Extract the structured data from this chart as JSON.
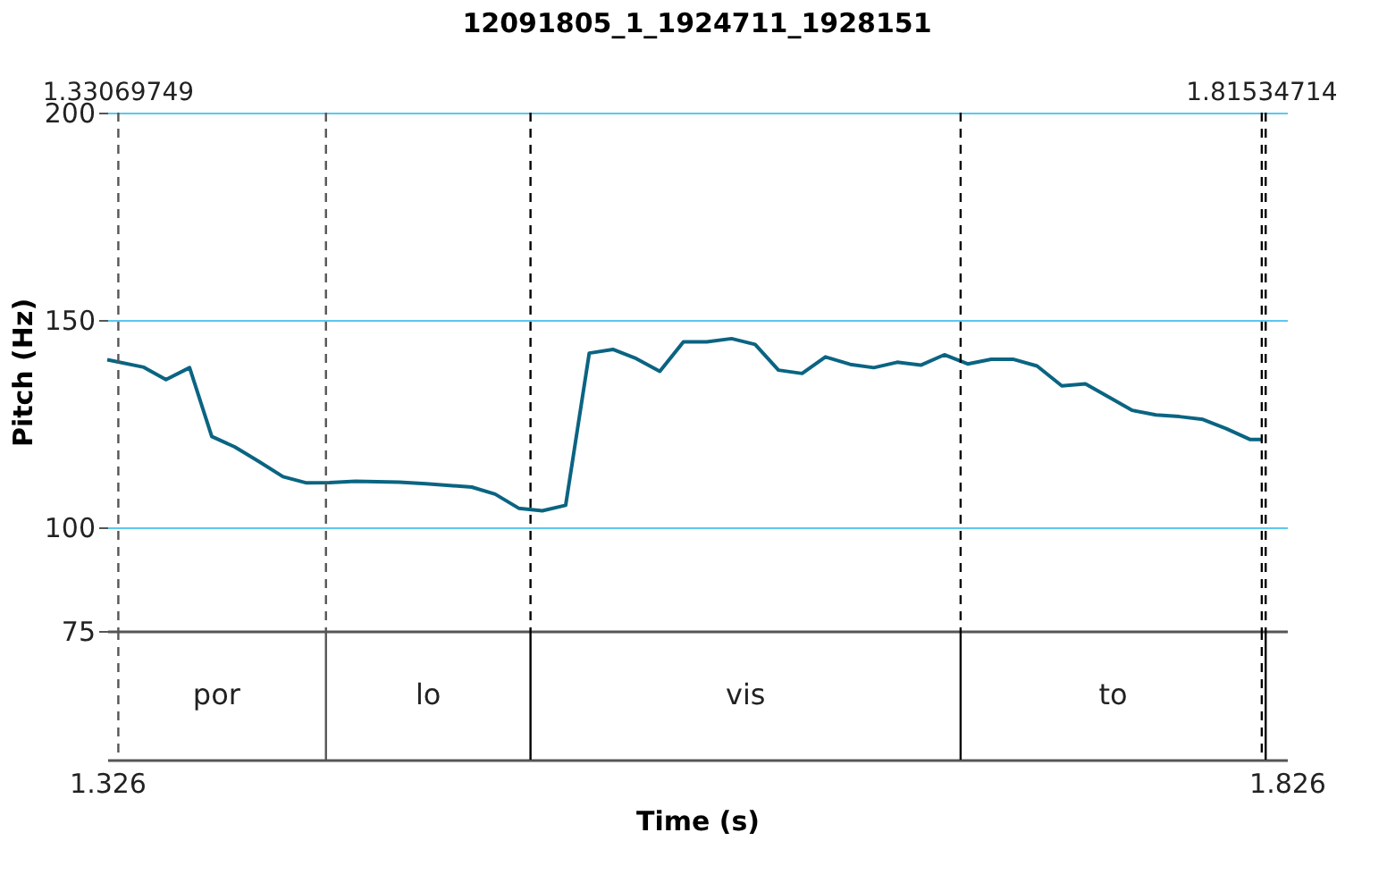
{
  "chart_data": {
    "type": "line",
    "title": "12091805_1_1924711_1928151",
    "xlabel": "Time (s)",
    "ylabel": "Pitch (Hz)",
    "x": [
      1.326,
      1.3415,
      1.3509,
      1.3609,
      1.3703,
      1.38,
      1.3905,
      1.4005,
      1.4105,
      1.4202,
      1.4312,
      1.4498,
      1.4611,
      1.4805,
      1.4904,
      1.5004,
      1.5104,
      1.5203,
      1.5303,
      1.5403,
      1.5502,
      1.5602,
      1.5702,
      1.5801,
      1.5906,
      1.6006,
      1.6105,
      1.6205,
      1.6304,
      1.6409,
      1.6509,
      1.6608,
      1.6708,
      1.6808,
      1.6907,
      1.7007,
      1.7102,
      1.7201,
      1.7306,
      1.7406,
      1.7505,
      1.7605,
      1.7705,
      1.7804,
      1.7904,
      1.8003,
      1.8103,
      1.8153
    ],
    "series": [
      {
        "color": "#0a6482",
        "values": [
          140.4,
          138.6,
          135.6,
          138.5,
          121.9,
          119.4,
          115.8,
          112.2,
          110.7,
          110.8,
          111.1,
          110.9,
          110.5,
          109.7,
          108.0,
          104.6,
          104.0,
          105.3,
          142.0,
          142.9,
          140.7,
          137.6,
          144.7,
          144.7,
          145.5,
          144.1,
          137.9,
          137.1,
          141.1,
          139.3,
          138.5,
          139.8,
          139.1,
          141.6,
          139.4,
          140.5,
          140.5,
          138.9,
          134.1,
          134.6,
          131.4,
          128.2,
          127.1,
          126.7,
          126.0,
          123.8,
          121.2,
          121.2
        ]
      }
    ],
    "xlim": [
      1.326,
      1.826
    ],
    "xticks": [
      1.326,
      1.826
    ],
    "ylim": [
      75,
      200
    ],
    "yticks": [
      75,
      100,
      150,
      200
    ],
    "grid": "y",
    "legend": false,
    "annotations": [
      "por",
      "lo",
      "vis",
      "to"
    ],
    "ref_lines": [
      {
        "axis": "x",
        "value": 1.33069749,
        "label": "1.33069749",
        "line_style": "dashed",
        "color": "#555555"
      },
      {
        "axis": "x",
        "value": 1.4187,
        "label": null,
        "line_style": "dashed",
        "color": "#555555"
      },
      {
        "axis": "x",
        "value": 1.5054,
        "label": null,
        "line_style": "dashed",
        "color": "#000000"
      },
      {
        "axis": "x",
        "value": 1.6877,
        "label": null,
        "line_style": "dashed",
        "color": "#000000"
      },
      {
        "axis": "x",
        "value": 1.81534714,
        "label": "1.81534714",
        "line_style": "dashed",
        "color": "#000000"
      },
      {
        "axis": "x",
        "value": 1.817,
        "label": null,
        "line_style": "dashed",
        "color": "#000000"
      }
    ]
  }
}
